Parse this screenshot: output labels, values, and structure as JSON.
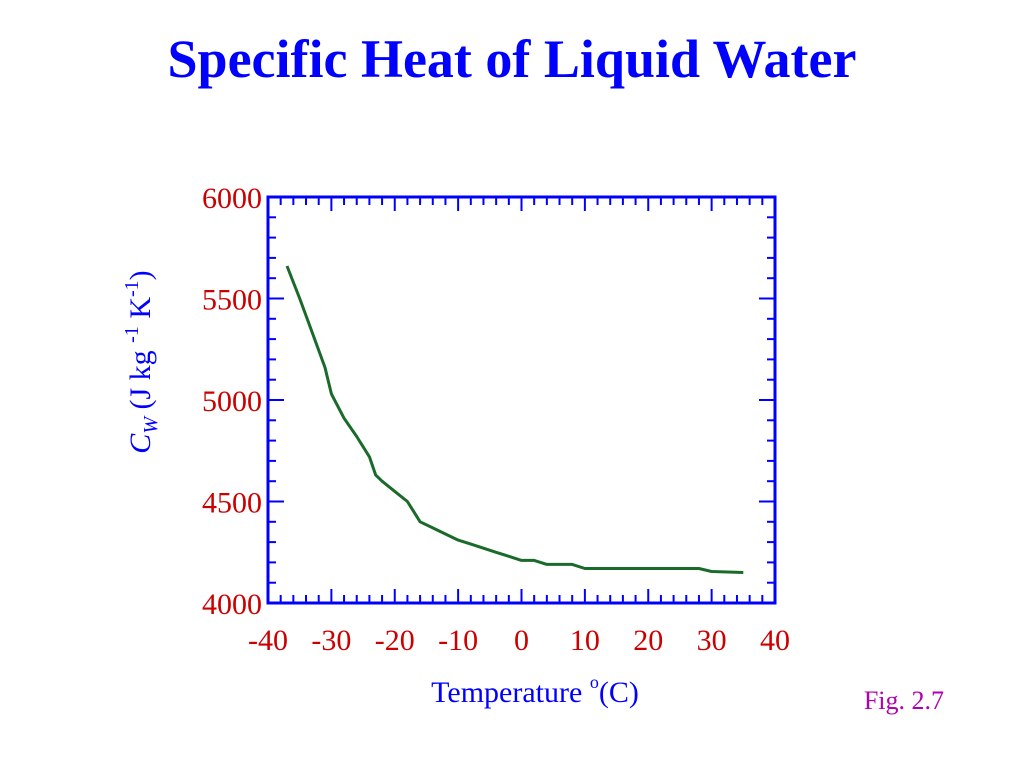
{
  "slide": {
    "title": "Specific Heat of Liquid Water",
    "figure_label": "Fig. 2.7"
  },
  "colors": {
    "title": "#0000ff",
    "frame": "#0000ff",
    "y_tick_labels": "#cc0000",
    "x_tick_labels": "#cc0000",
    "axis_labels": "#0000ff",
    "line": "#1a6b2a",
    "figure_label": "#b000b0"
  },
  "chart_data": {
    "type": "line",
    "title": "Specific Heat of Liquid Water",
    "xlabel": "Temperature (oC)",
    "ylabel": "CW (J kg -1 K-1)",
    "ylabel_parts": {
      "symbol": "C",
      "subscript": "W",
      "units_open": " (J kg ",
      "exp1": "-1",
      "units_mid": " K",
      "exp2": "-1",
      "units_close": ")"
    },
    "xlabel_parts": {
      "text": "Temperature ",
      "degree": "o",
      "unit": "(C)"
    },
    "xlim": [
      -40,
      40
    ],
    "ylim": [
      4000,
      6000
    ],
    "x_ticks": [
      -40,
      -30,
      -20,
      -10,
      0,
      10,
      20,
      30,
      40
    ],
    "x_tick_labels": [
      "-40",
      "-30",
      "-20",
      "-10",
      "0",
      "10",
      "20",
      "30",
      "40"
    ],
    "y_ticks": [
      4000,
      4500,
      5000,
      5500,
      6000
    ],
    "y_tick_labels": [
      "4000",
      "4500",
      "5000",
      "5500",
      "6000"
    ],
    "grid": false,
    "series": [
      {
        "x": [
          -37,
          -35,
          -33,
          -31,
          -30,
          -28,
          -26,
          -24,
          -23,
          -22,
          -20,
          -18,
          -16,
          -14,
          -12,
          -10,
          -8,
          -6,
          -4,
          -2,
          0,
          2,
          4,
          6,
          8,
          10,
          14,
          18,
          22,
          26,
          28,
          30,
          35
        ],
        "values": [
          5660,
          5500,
          5330,
          5160,
          5030,
          4910,
          4820,
          4720,
          4630,
          4600,
          4550,
          4500,
          4400,
          4370,
          4340,
          4310,
          4290,
          4270,
          4250,
          4230,
          4210,
          4210,
          4190,
          4190,
          4190,
          4170,
          4170,
          4170,
          4170,
          4170,
          4170,
          4155,
          4150
        ]
      }
    ]
  }
}
